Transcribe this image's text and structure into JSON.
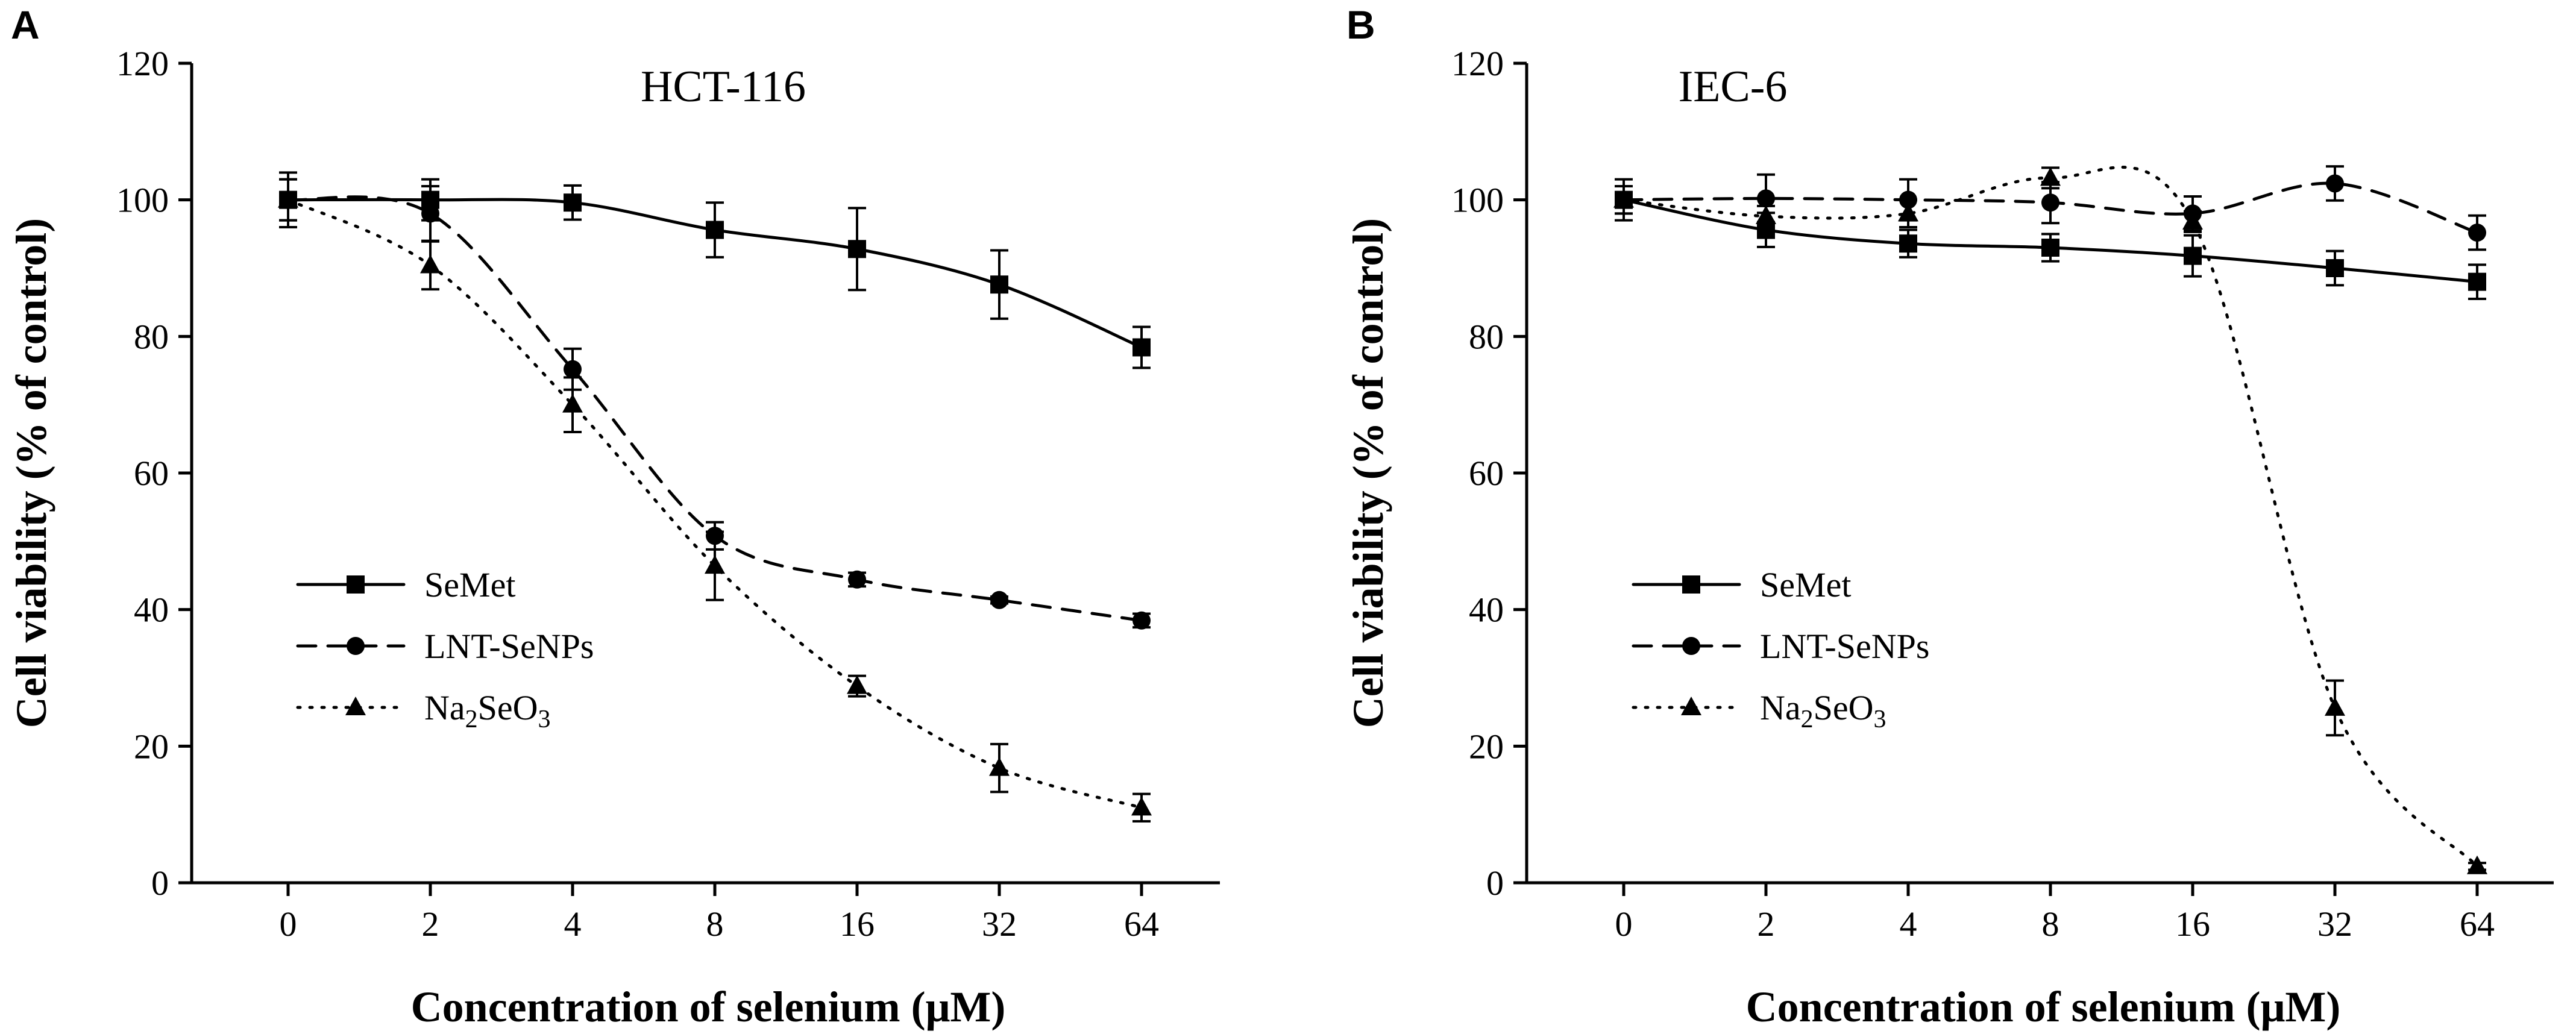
{
  "chart_data": [
    {
      "type": "line",
      "panel": "A",
      "title": "HCT-116",
      "xlabel": "Concentration of selenium (μM)",
      "ylabel": "Cell viability (% of control)",
      "categories": [
        "0",
        "2",
        "4",
        "8",
        "16",
        "32",
        "64"
      ],
      "ylim": [
        0,
        120
      ],
      "yticks": [
        "0",
        "20",
        "40",
        "60",
        "80",
        "100",
        "120"
      ],
      "legend_position": "center-left",
      "series": [
        {
          "name": "SeMet",
          "label_parts": [
            "SeMet"
          ],
          "style": "solid",
          "marker": "square",
          "values": [
            100,
            100,
            99.6,
            95.6,
            92.8,
            87.6,
            78.4
          ],
          "errors": [
            3,
            3,
            2.5,
            4,
            6,
            5,
            3
          ]
        },
        {
          "name": "LNT-SeNPs",
          "label_parts": [
            "LNT-SeNPs"
          ],
          "style": "dashed",
          "marker": "circle",
          "values": [
            100,
            98,
            75.2,
            50.8,
            44.4,
            41.4,
            38.4
          ],
          "errors": [
            3,
            4,
            3,
            2,
            1,
            0.5,
            1
          ]
        },
        {
          "name": "Na2SeO3",
          "label_parts": [
            "Na",
            "2",
            "SeO",
            "3"
          ],
          "style": "dotted",
          "marker": "triangle",
          "values": [
            100,
            90.4,
            70,
            46.4,
            28.8,
            16.8,
            11
          ],
          "errors": [
            4,
            3.5,
            4,
            5,
            1.5,
            3.5,
            2
          ]
        }
      ]
    },
    {
      "type": "line",
      "panel": "B",
      "title": "IEC-6",
      "xlabel": "Concentration of selenium (μM)",
      "ylabel": "Cell viability (% of control)",
      "categories": [
        "0",
        "2",
        "4",
        "8",
        "16",
        "32",
        "64"
      ],
      "ylim": [
        0,
        120
      ],
      "yticks": [
        "0",
        "20",
        "40",
        "60",
        "80",
        "100",
        "120"
      ],
      "legend_position": "center-left",
      "series": [
        {
          "name": "SeMet",
          "label_parts": [
            "SeMet"
          ],
          "style": "solid",
          "marker": "square",
          "values": [
            100,
            95.6,
            93.6,
            93,
            91.8,
            90,
            88
          ],
          "errors": [
            3,
            2.5,
            2,
            2,
            3,
            2.5,
            2.5
          ]
        },
        {
          "name": "LNT-SeNPs",
          "label_parts": [
            "LNT-SeNPs"
          ],
          "style": "dashed",
          "marker": "circle",
          "values": [
            100,
            100.2,
            100,
            99.6,
            98,
            102.4,
            95.2
          ],
          "errors": [
            2,
            3.5,
            3,
            3,
            2.5,
            2.5,
            2.5
          ]
        },
        {
          "name": "Na2SeO3",
          "label_parts": [
            "Na",
            "2",
            "SeO",
            "3"
          ],
          "style": "dotted",
          "marker": "triangle",
          "values": [
            100,
            97.6,
            98,
            103.2,
            96.8,
            25.6,
            2.4
          ],
          "errors": [
            2,
            1.5,
            2,
            1.5,
            1.5,
            4,
            0.5
          ]
        }
      ]
    }
  ]
}
